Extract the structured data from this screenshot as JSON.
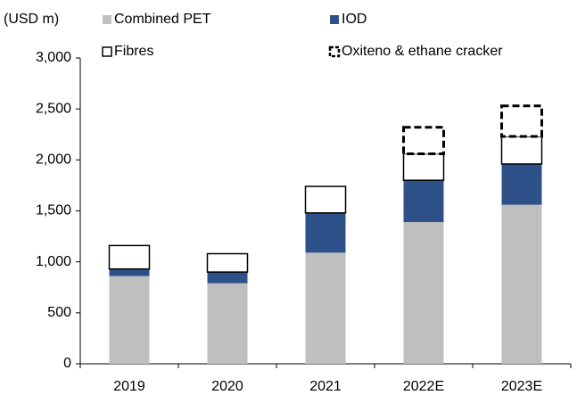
{
  "chart_data": {
    "type": "stacked_bar",
    "y_axis_label": "(USD m)",
    "categories": [
      "2019",
      "2020",
      "2021",
      "2022E",
      "2023E"
    ],
    "series": [
      {
        "name": "Combined PET",
        "color": "#bfbfbf",
        "values": [
          860,
          790,
          1090,
          1390,
          1560
        ]
      },
      {
        "name": "IOD",
        "color": "#2f5189",
        "values": [
          70,
          110,
          390,
          410,
          400
        ]
      },
      {
        "name": "Fibres",
        "color": "#ffffff",
        "stroke": "#000000",
        "values": [
          230,
          180,
          260,
          260,
          270
        ]
      },
      {
        "name": "Oxiteno & ethane cracker",
        "color": "#ffffff",
        "stroke": "#000000",
        "dashed": true,
        "values": [
          null,
          null,
          null,
          260,
          300
        ]
      }
    ],
    "ylim": [
      0,
      3000
    ],
    "yticks": [
      0,
      500,
      {
        "value": 1000,
        "label": "1,000"
      },
      {
        "value": 1500,
        "label": "1,500"
      },
      {
        "value": 2000,
        "label": "2,000"
      },
      {
        "value": 2500,
        "label": "2,500"
      },
      {
        "value": 3000,
        "label": "3,000"
      }
    ],
    "grid": false
  }
}
